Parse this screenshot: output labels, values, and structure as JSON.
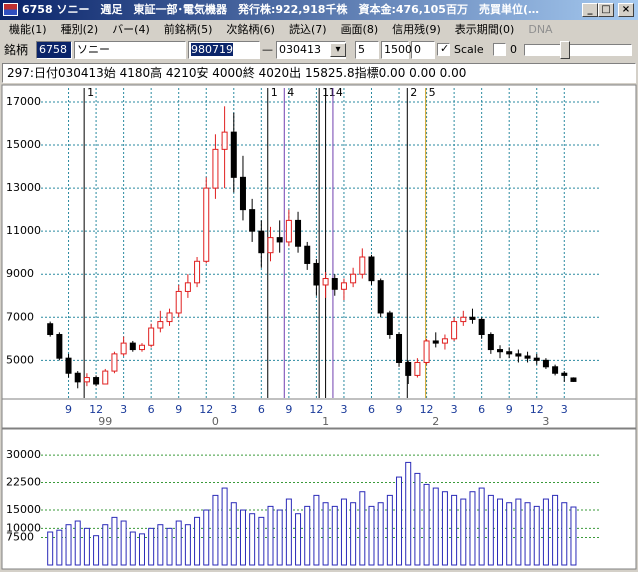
{
  "window": {
    "title": "6758 ソニー　週足　東証一部･電気機器　発行株:922,918千株　資本金:476,105百万　売買単位(…",
    "menu": [
      "機能(1)",
      "種別(2)",
      "バー(4)",
      "前銘柄(5)",
      "次銘柄(6)",
      "読込(7)",
      "画面(8)",
      "信用残(9)",
      "表示期間(0)",
      "DNA"
    ],
    "toolbar": {
      "label": "銘柄",
      "code": "6758",
      "name": "ソニー",
      "from": "980719",
      "dash": "—",
      "to": "030413",
      "field1": "5",
      "field2": "1500",
      "field3": "0",
      "scale": "Scale",
      "field4": "0"
    },
    "info": "297:日付030413始 4180高 4210安 4000終 4020出 15825.8指標0.00 0.00 0.00"
  },
  "chart_data": [
    {
      "type": "candlestick",
      "open": [
        6700,
        6200,
        5100,
        4400,
        4000,
        4200,
        3900,
        4500,
        5300,
        5800,
        5500,
        5700,
        6500,
        6800,
        7200,
        8200,
        8600,
        9600,
        13000,
        14800,
        15600,
        13500,
        12000,
        11000,
        10000,
        10700,
        10500,
        11500,
        10300,
        9500,
        8500,
        8800,
        8300,
        8600,
        9000,
        9800,
        8700,
        7200,
        6200,
        4900,
        4300,
        4900,
        5900,
        5800,
        6000,
        6800,
        7000,
        6900,
        6200,
        5500,
        5400,
        5300,
        5200,
        5100,
        5000,
        4700,
        4400,
        4180
      ],
      "high": [
        6800,
        6300,
        5300,
        4500,
        4400,
        4300,
        4600,
        5400,
        6100,
        5900,
        5800,
        6700,
        7300,
        7400,
        8500,
        9000,
        9800,
        13500,
        15500,
        16800,
        16500,
        14500,
        12500,
        11500,
        11200,
        11500,
        12000,
        11900,
        10500,
        9700,
        9100,
        9000,
        8800,
        9300,
        10200,
        9900,
        8800,
        7300,
        6300,
        5000,
        5100,
        6000,
        6300,
        6200,
        7000,
        7300,
        7400,
        7000,
        6300,
        5700,
        5600,
        5500,
        5400,
        5300,
        5100,
        4800,
        4500,
        4210
      ],
      "low": [
        6100,
        5000,
        4200,
        3700,
        3800,
        3800,
        3900,
        4400,
        5200,
        5400,
        5400,
        5600,
        6300,
        6600,
        7000,
        7900,
        8400,
        9500,
        12500,
        13000,
        12800,
        11500,
        10500,
        9300,
        9600,
        10000,
        10300,
        10000,
        9200,
        8000,
        7900,
        8000,
        7800,
        8400,
        8800,
        8500,
        7000,
        6000,
        4700,
        3900,
        4200,
        4800,
        5600,
        5500,
        5900,
        6600,
        6700,
        6000,
        5300,
        5100,
        5100,
        4900,
        4900,
        4800,
        4600,
        4300,
        4000,
        4000
      ],
      "close": [
        6200,
        5100,
        4400,
        4000,
        4200,
        3900,
        4500,
        5300,
        5800,
        5500,
        5700,
        6500,
        6800,
        7200,
        8200,
        8600,
        9600,
        13000,
        14800,
        15600,
        13500,
        12000,
        11000,
        10000,
        10700,
        10500,
        11500,
        10300,
        9500,
        8500,
        8800,
        8300,
        8600,
        9000,
        9800,
        8700,
        7200,
        6200,
        4900,
        4300,
        4900,
        5900,
        5800,
        6000,
        6800,
        7000,
        6900,
        6200,
        5500,
        5400,
        5300,
        5200,
        5100,
        5000,
        4700,
        4400,
        4300,
        4020
      ],
      "up_color": "#e02020",
      "down_color": "#000000",
      "grid_color": "#2a8aa0",
      "xlim": [
        -1,
        60
      ],
      "ylim": [
        3250,
        17650
      ],
      "yticks": [
        5000,
        7000,
        9000,
        11000,
        13000,
        15000,
        17000
      ],
      "xticks": [
        {
          "value": 2,
          "label": "9"
        },
        {
          "value": 5,
          "label": "12"
        },
        {
          "value": 8,
          "label": "3"
        },
        {
          "value": 11,
          "label": "6"
        },
        {
          "value": 14,
          "label": "9"
        },
        {
          "value": 17,
          "label": "12"
        },
        {
          "value": 20,
          "label": "3"
        },
        {
          "value": 23,
          "label": "6"
        },
        {
          "value": 26,
          "label": "9"
        },
        {
          "value": 29,
          "label": "12"
        },
        {
          "value": 32,
          "label": "3"
        },
        {
          "value": 35,
          "label": "6"
        },
        {
          "value": 38,
          "label": "9"
        },
        {
          "value": 41,
          "label": "12"
        },
        {
          "value": 44,
          "label": "3"
        },
        {
          "value": 47,
          "label": "6"
        },
        {
          "value": 50,
          "label": "9"
        },
        {
          "value": 53,
          "label": "12"
        },
        {
          "value": 56,
          "label": "3"
        }
      ],
      "year_ticks": [
        {
          "value": 6,
          "label": "99"
        },
        {
          "value": 18,
          "label": "0"
        },
        {
          "value": 30,
          "label": "1"
        },
        {
          "value": 42,
          "label": "2"
        },
        {
          "value": 54,
          "label": "3"
        }
      ],
      "markers": [
        {
          "x": 3.7,
          "label": "1",
          "color": "#000000"
        },
        {
          "x": 23.7,
          "label": "1",
          "color": "#000000"
        },
        {
          "x": 25.5,
          "label": "4",
          "color": "#7040b0"
        },
        {
          "x": 29.3,
          "label": "1",
          "color": "#000000"
        },
        {
          "x": 30.0,
          "label": "1",
          "color": "#000000"
        },
        {
          "x": 30.8,
          "label": "4",
          "color": "#7040b0"
        },
        {
          "x": 38.9,
          "label": "2",
          "color": "#000000"
        },
        {
          "x": 40.9,
          "label": "5",
          "color": "#d0a020"
        }
      ],
      "grid": true
    },
    {
      "type": "bar",
      "values": [
        9000,
        9500,
        11000,
        12000,
        10000,
        8000,
        11000,
        13000,
        12000,
        9000,
        8500,
        10000,
        11000,
        10000,
        12000,
        11000,
        13000,
        15000,
        19000,
        21000,
        17000,
        15000,
        14000,
        13000,
        16000,
        15000,
        18000,
        14000,
        16000,
        19000,
        17000,
        16000,
        18000,
        17000,
        20000,
        16000,
        17000,
        19000,
        24000,
        28000,
        25000,
        22000,
        21000,
        20000,
        19000,
        18000,
        20000,
        21000,
        19000,
        18000,
        17000,
        18000,
        17000,
        16000,
        18000,
        19000,
        17000,
        15826
      ],
      "color": "#2a2ab8",
      "grid_color": "#3a9a3a",
      "xlim": [
        -1,
        60
      ],
      "ylim": [
        0,
        36300
      ],
      "yticks": [
        7500,
        10000,
        15000,
        22500,
        30000
      ],
      "grid": true
    }
  ]
}
